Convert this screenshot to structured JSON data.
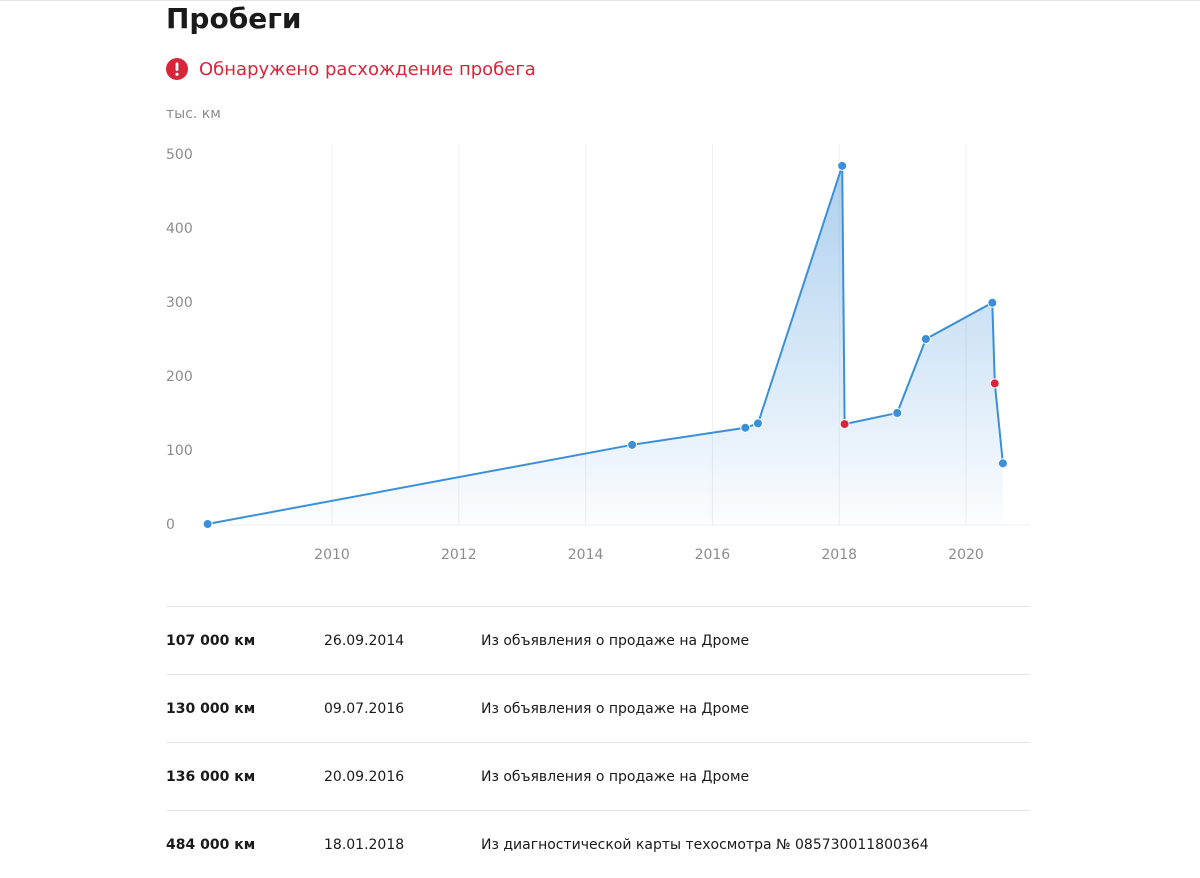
{
  "page": {
    "title": "Пробеги",
    "alert": "Обнаружено расхождение пробега",
    "icon": "exclamation-circle-icon",
    "accent_color": "#3b8fd9",
    "alert_color": "#d9253a"
  },
  "chart_data": {
    "type": "area",
    "ylabel": "тыс. км",
    "xlim": [
      "2008-01-01",
      "2020-12-31"
    ],
    "ylim": [
      0,
      500
    ],
    "yticks": [
      0,
      100,
      200,
      300,
      400,
      500
    ],
    "xticks": [
      "2010",
      "2012",
      "2014",
      "2016",
      "2018",
      "2020"
    ],
    "grid": "vertical",
    "legend": "none",
    "series": [
      {
        "points": [
          {
            "x": "2008-01-15",
            "y": 0,
            "flag": false
          },
          {
            "x": "2014-09-26",
            "y": 107,
            "flag": false
          },
          {
            "x": "2016-07-09",
            "y": 130,
            "flag": false
          },
          {
            "x": "2016-09-20",
            "y": 136,
            "flag": false
          },
          {
            "x": "2018-01-18",
            "y": 484,
            "flag": false
          },
          {
            "x": "2018-02-01",
            "y": 135,
            "flag": true
          },
          {
            "x": "2018-12-01",
            "y": 150,
            "flag": false
          },
          {
            "x": "2019-05-15",
            "y": 250,
            "flag": false
          },
          {
            "x": "2020-06-01",
            "y": 299,
            "flag": false
          },
          {
            "x": "2020-06-15",
            "y": 190,
            "flag": true
          },
          {
            "x": "2020-08-01",
            "y": 82,
            "flag": false
          }
        ]
      }
    ]
  },
  "records": [
    {
      "km": "107 000 км",
      "date": "26.09.2014",
      "source": "Из объявления о продаже на Дроме"
    },
    {
      "km": "130 000 км",
      "date": "09.07.2016",
      "source": "Из объявления о продаже на Дроме"
    },
    {
      "km": "136 000 км",
      "date": "20.09.2016",
      "source": "Из объявления о продаже на Дроме"
    },
    {
      "km": "484 000 км",
      "date": "18.01.2018",
      "source": "Из диагностической карты техосмотра № 085730011800364"
    }
  ]
}
